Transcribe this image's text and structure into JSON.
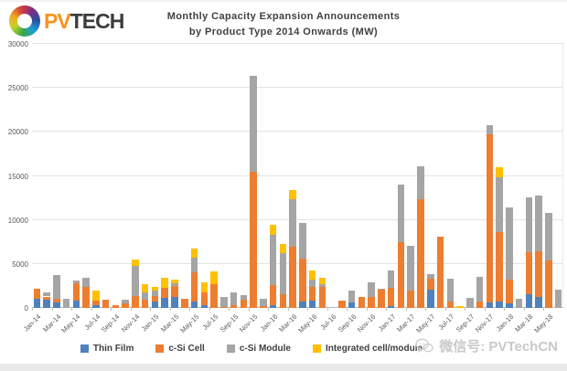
{
  "header": {
    "logo": {
      "pv": "PV",
      "tech": "TECH"
    },
    "title_line1": "Monthly Capacity Expansion Announcements",
    "title_line2": "by Product Type 2014 Onwards (MW)"
  },
  "watermark": {
    "label": "微信号: PVTechCN"
  },
  "legend": {
    "items": [
      {
        "label": "Thin Film",
        "color": "#4F81BD"
      },
      {
        "label": "c-Si Cell",
        "color": "#ED7D31"
      },
      {
        "label": "c-Si Module",
        "color": "#A5A5A5"
      },
      {
        "label": "Integrated cell/module",
        "color": "#FFC000"
      }
    ]
  },
  "chart_data": {
    "type": "bar",
    "subtype": "stacked",
    "title": "Monthly Capacity Expansion Announcements by Product Type 2014 Onwards (MW)",
    "xlabel": "",
    "ylabel": "",
    "ylim": [
      0,
      30000
    ],
    "yticks": [
      0,
      5000,
      10000,
      15000,
      20000,
      25000,
      30000
    ],
    "grid": "horizontal",
    "legend_position": "bottom",
    "x_label_every": 2,
    "categories": [
      "Jan-14",
      "Feb-14",
      "Mar-14",
      "Apr-14",
      "May-14",
      "Jun-14",
      "Jul-14",
      "Aug-14",
      "Sep-14",
      "Oct-14",
      "Nov-14",
      "Dec-14",
      "Jan-15",
      "Feb-15",
      "Mar-15",
      "Apr-15",
      "May-15",
      "Jun-15",
      "Jul-15",
      "Aug-15",
      "Sep-15",
      "Oct-15",
      "Nov-15",
      "Dec-15",
      "Jan-16",
      "Feb-16",
      "Mar-16",
      "Apr-16",
      "May-16",
      "Jun-16",
      "Jul-16",
      "Aug-16",
      "Sep-16",
      "Oct-16",
      "Nov-16",
      "Dec-16",
      "Jan-17",
      "Feb-17",
      "Mar-17",
      "Apr-17",
      "May-17",
      "Jun-17",
      "Jul-17",
      "Aug-17",
      "Sep-17",
      "Oct-17",
      "Nov-17",
      "Dec-17",
      "Jan-18",
      "Feb-18",
      "Mar-18",
      "Apr-18",
      "May-18",
      "Jun-18"
    ],
    "series": [
      {
        "name": "Thin Film",
        "color": "#4F81BD",
        "values": [
          1000,
          900,
          600,
          0,
          800,
          0,
          300,
          0,
          0,
          0,
          0,
          0,
          700,
          1100,
          1250,
          0,
          700,
          300,
          0,
          0,
          0,
          0,
          0,
          0,
          300,
          0,
          0,
          700,
          850,
          0,
          0,
          0,
          600,
          0,
          0,
          0,
          200,
          0,
          0,
          0,
          2100,
          0,
          0,
          0,
          0,
          0,
          600,
          700,
          500,
          0,
          1600,
          1250,
          0,
          0
        ]
      },
      {
        "name": "c-Si Cell",
        "color": "#ED7D31",
        "values": [
          1200,
          400,
          450,
          0,
          2000,
          2400,
          500,
          950,
          280,
          500,
          1400,
          900,
          700,
          1150,
          1250,
          1000,
          3400,
          1500,
          2700,
          100,
          350,
          900,
          15500,
          200,
          2300,
          1600,
          7000,
          4900,
          1550,
          2400,
          0,
          800,
          0,
          1200,
          1200,
          2100,
          2100,
          7500,
          2000,
          12400,
          1200,
          8100,
          700,
          0,
          0,
          700,
          19100,
          7900,
          2700,
          0,
          4700,
          5200,
          5400,
          0
        ]
      },
      {
        "name": "c-Si Module",
        "color": "#A5A5A5",
        "values": [
          0,
          450,
          2650,
          1050,
          300,
          1000,
          0,
          0,
          0,
          450,
          3400,
          900,
          550,
          0,
          300,
          0,
          1600,
          0,
          0,
          1200,
          1400,
          550,
          10900,
          800,
          5700,
          4600,
          5400,
          4100,
          850,
          300,
          0,
          0,
          1400,
          0,
          1700,
          100,
          2000,
          6500,
          5100,
          3700,
          500,
          0,
          2600,
          0,
          1100,
          2800,
          1100,
          6250,
          8200,
          1000,
          6300,
          6350,
          5350,
          2100
        ]
      },
      {
        "name": "Integrated cell/module",
        "color": "#FFC000",
        "values": [
          0,
          0,
          0,
          0,
          0,
          0,
          1150,
          0,
          0,
          0,
          700,
          850,
          450,
          1150,
          400,
          0,
          1000,
          1100,
          1500,
          0,
          0,
          0,
          0,
          0,
          1200,
          1100,
          1000,
          0,
          1050,
          700,
          0,
          0,
          0,
          0,
          0,
          0,
          0,
          0,
          0,
          0,
          0,
          0,
          0,
          200,
          0,
          0,
          0,
          1150,
          0,
          0,
          0,
          0,
          0,
          0
        ]
      }
    ]
  }
}
